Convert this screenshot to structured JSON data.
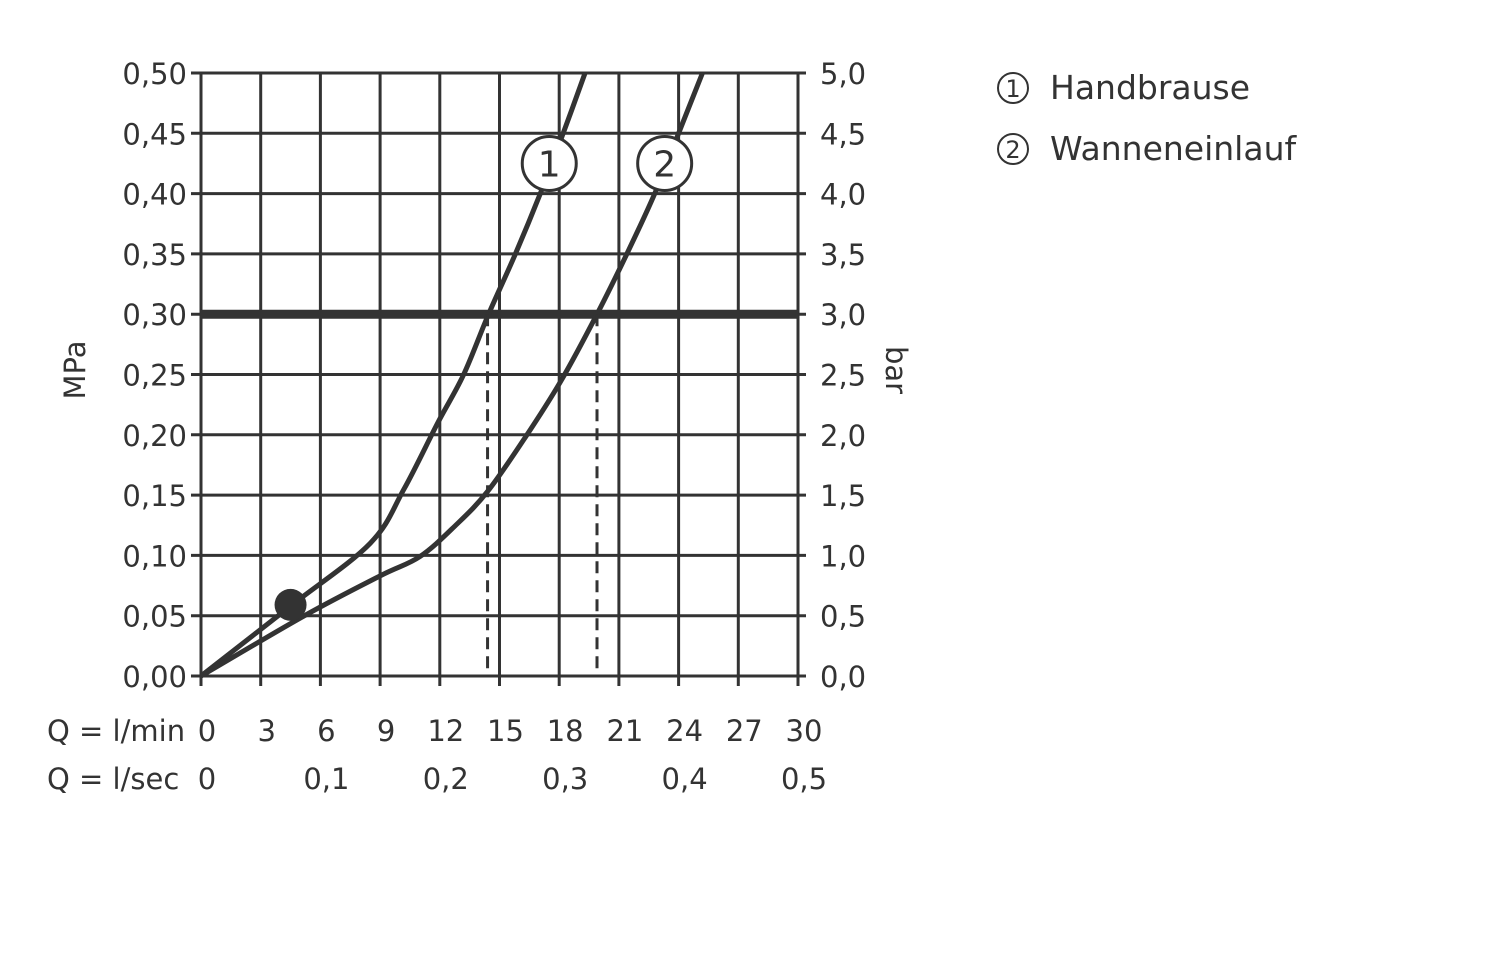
{
  "chart_data": {
    "type": "line",
    "title": "",
    "ylabel_left": "MPa",
    "ylabel_right": "bar",
    "xlabel_row1": "Q = l/min",
    "xlabel_row2": "Q = l/sec",
    "xlim": [
      0,
      30
    ],
    "ylim": [
      0,
      0.5
    ],
    "grid": true,
    "x_ticks_lmin": [
      "0",
      "3",
      "6",
      "9",
      "12",
      "15",
      "18",
      "21",
      "24",
      "27",
      "30"
    ],
    "x_ticks_lsec": [
      {
        "at": 0,
        "label": "0"
      },
      {
        "at": 6,
        "label": "0,1"
      },
      {
        "at": 12,
        "label": "0,2"
      },
      {
        "at": 18,
        "label": "0,3"
      },
      {
        "at": 24,
        "label": "0,4"
      },
      {
        "at": 30,
        "label": "0,5"
      }
    ],
    "y_ticks_left": [
      "0,00",
      "0,05",
      "0,10",
      "0,15",
      "0,20",
      "0,25",
      "0,30",
      "0,35",
      "0,40",
      "0,45",
      "0,50"
    ],
    "y_ticks_right": [
      "0,0",
      "0,5",
      "1,0",
      "1,5",
      "2,0",
      "2,5",
      "3,0",
      "3,5",
      "4,0",
      "4,5",
      "5,0"
    ],
    "reference_line_y": 0.3,
    "marker_point": {
      "x": 4.5,
      "y": 0.059
    },
    "series": [
      {
        "name": "Handbrause",
        "marker_label": "1",
        "label_pos": {
          "x": 17.5,
          "y": 0.425
        },
        "drop_x": 14.4,
        "points": [
          [
            0,
            0
          ],
          [
            4.5,
            0.058
          ],
          [
            8.5,
            0.11
          ],
          [
            10.2,
            0.155
          ],
          [
            11.9,
            0.21
          ],
          [
            13.2,
            0.25
          ],
          [
            14.45,
            0.3
          ],
          [
            15.8,
            0.35
          ],
          [
            17.05,
            0.4
          ],
          [
            18.2,
            0.45
          ],
          [
            19.3,
            0.5
          ]
        ]
      },
      {
        "name": "Wanneneinlauf",
        "marker_label": "2",
        "label_pos": {
          "x": 23.3,
          "y": 0.425
        },
        "drop_x": 19.9,
        "points": [
          [
            0,
            0
          ],
          [
            5.2,
            0.05
          ],
          [
            9,
            0.083
          ],
          [
            11,
            0.099
          ],
          [
            12.8,
            0.125
          ],
          [
            14.4,
            0.153
          ],
          [
            16.3,
            0.198
          ],
          [
            18.1,
            0.245
          ],
          [
            19.9,
            0.3
          ],
          [
            21.4,
            0.35
          ],
          [
            22.8,
            0.4
          ],
          [
            24,
            0.45
          ],
          [
            25.2,
            0.5
          ]
        ]
      }
    ],
    "legend_position": "right",
    "legend": [
      {
        "symbol": "1",
        "label": "Handbrause"
      },
      {
        "symbol": "2",
        "label": "Wanneneinlauf"
      }
    ]
  }
}
